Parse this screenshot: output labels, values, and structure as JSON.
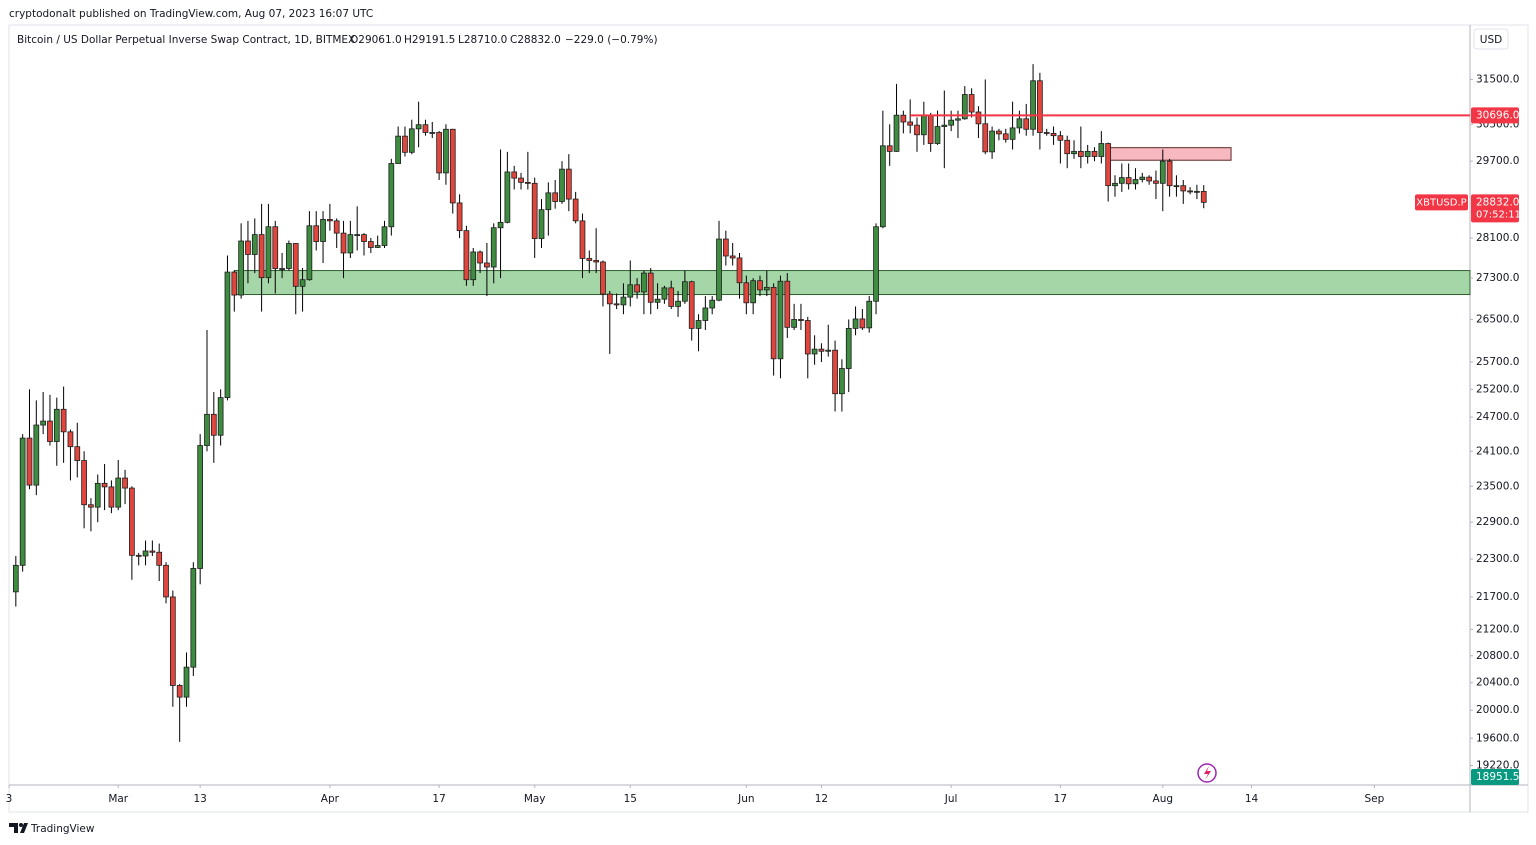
{
  "header": {
    "publisher": "cryptodonalt published on TradingView.com, Aug 07, 2023 16:07 UTC"
  },
  "footer": {
    "brand": "TradingView"
  },
  "chart_data": {
    "type": "candlestick",
    "title": "Bitcoin / US Dollar Perpetual Inverse Swap Contract, 1D, BITMEX",
    "ohlc_labels": [
      "O29061.0",
      "H29191.5",
      "L28710.0",
      "C28832.0"
    ],
    "change_label": "−229.0 (−0.79%)",
    "currency": "USD",
    "x": [
      "2023-02-14",
      "2023-02-15",
      "2023-02-16",
      "2023-02-17",
      "2023-02-18",
      "2023-02-19",
      "2023-02-20",
      "2023-02-21",
      "2023-02-22",
      "2023-02-23",
      "2023-02-24",
      "2023-02-25",
      "2023-02-26",
      "2023-02-27",
      "2023-02-28",
      "2023-03-01",
      "2023-03-02",
      "2023-03-03",
      "2023-03-04",
      "2023-03-05",
      "2023-03-06",
      "2023-03-07",
      "2023-03-08",
      "2023-03-09",
      "2023-03-10",
      "2023-03-11",
      "2023-03-12",
      "2023-03-13",
      "2023-03-14",
      "2023-03-15",
      "2023-03-16",
      "2023-03-17",
      "2023-03-18",
      "2023-03-19",
      "2023-03-20",
      "2023-03-21",
      "2023-03-22",
      "2023-03-23",
      "2023-03-24",
      "2023-03-25",
      "2023-03-26",
      "2023-03-27",
      "2023-03-28",
      "2023-03-29",
      "2023-03-30",
      "2023-03-31",
      "2023-04-01",
      "2023-04-02",
      "2023-04-03",
      "2023-04-04",
      "2023-04-05",
      "2023-04-06",
      "2023-04-07",
      "2023-04-08",
      "2023-04-09",
      "2023-04-10",
      "2023-04-11",
      "2023-04-12",
      "2023-04-13",
      "2023-04-14",
      "2023-04-15",
      "2023-04-16",
      "2023-04-17",
      "2023-04-18",
      "2023-04-19",
      "2023-04-20",
      "2023-04-21",
      "2023-04-22",
      "2023-04-23",
      "2023-04-24",
      "2023-04-25",
      "2023-04-26",
      "2023-04-27",
      "2023-04-28",
      "2023-04-29",
      "2023-04-30",
      "2023-05-01",
      "2023-05-02",
      "2023-05-03",
      "2023-05-04",
      "2023-05-05",
      "2023-05-06",
      "2023-05-07",
      "2023-05-08",
      "2023-05-09",
      "2023-05-10",
      "2023-05-11",
      "2023-05-12",
      "2023-05-13",
      "2023-05-14",
      "2023-05-15",
      "2023-05-16",
      "2023-05-17",
      "2023-05-18",
      "2023-05-19",
      "2023-05-20",
      "2023-05-21",
      "2023-05-22",
      "2023-05-23",
      "2023-05-24",
      "2023-05-25",
      "2023-05-26",
      "2023-05-27",
      "2023-05-28",
      "2023-05-29",
      "2023-05-30",
      "2023-05-31",
      "2023-06-01",
      "2023-06-02",
      "2023-06-03",
      "2023-06-04",
      "2023-06-05",
      "2023-06-06",
      "2023-06-07",
      "2023-06-08",
      "2023-06-09",
      "2023-06-10",
      "2023-06-11",
      "2023-06-12",
      "2023-06-13",
      "2023-06-14",
      "2023-06-15",
      "2023-06-16",
      "2023-06-17",
      "2023-06-18",
      "2023-06-19",
      "2023-06-20",
      "2023-06-21",
      "2023-06-22",
      "2023-06-23",
      "2023-06-24",
      "2023-06-25",
      "2023-06-26",
      "2023-06-27",
      "2023-06-28",
      "2023-06-29",
      "2023-06-30",
      "2023-07-01",
      "2023-07-02",
      "2023-07-03",
      "2023-07-04",
      "2023-07-05",
      "2023-07-06",
      "2023-07-07",
      "2023-07-08",
      "2023-07-09",
      "2023-07-10",
      "2023-07-11",
      "2023-07-12",
      "2023-07-13",
      "2023-07-14",
      "2023-07-15",
      "2023-07-16",
      "2023-07-17",
      "2023-07-18",
      "2023-07-19",
      "2023-07-20",
      "2023-07-21",
      "2023-07-22",
      "2023-07-23",
      "2023-07-24",
      "2023-07-25",
      "2023-07-26",
      "2023-07-27",
      "2023-07-28",
      "2023-07-29",
      "2023-07-30",
      "2023-07-31",
      "2023-08-01",
      "2023-08-02",
      "2023-08-03",
      "2023-08-04",
      "2023-08-05",
      "2023-08-06",
      "2023-08-07"
    ],
    "open": [
      21780,
      22200,
      24330,
      23520,
      24560,
      24630,
      24270,
      24840,
      24440,
      24180,
      23940,
      23190,
      23150,
      23550,
      23490,
      23150,
      23640,
      23470,
      22360,
      22350,
      22430,
      22410,
      22200,
      21700,
      20360,
      20190,
      20630,
      22150,
      24200,
      24750,
      24380,
      25050,
      27420,
      26970,
      28040,
      27770,
      28170,
      27310,
      28330,
      27490,
      27490,
      27990,
      27140,
      27270,
      28350,
      28030,
      28480,
      28450,
      28200,
      27800,
      28170,
      28170,
      28030,
      27910,
      27950,
      28330,
      29650,
      30240,
      29890,
      30400,
      30490,
      30320,
      30320,
      29450,
      30390,
      28820,
      28250,
      27270,
      27820,
      27600,
      27520,
      28310,
      28420,
      29470,
      29340,
      29250,
      29230,
      28090,
      28680,
      29030,
      28850,
      29530,
      28900,
      28450,
      27690,
      27650,
      27620,
      26990,
      26800,
      26780,
      26930,
      27170,
      27030,
      27400,
      26830,
      26890,
      27110,
      26750,
      26850,
      27230,
      26330,
      26480,
      26720,
      26870,
      28080,
      27740,
      27700,
      27210,
      26820,
      27250,
      27070,
      27120,
      25760,
      27240,
      26350,
      26500,
      26480,
      25850,
      25940,
      25900,
      25920,
      25120,
      25580,
      26330,
      26510,
      26340,
      26850,
      28330,
      30030,
      29910,
      30700,
      30550,
      30480,
      30270,
      30690,
      30080,
      30450,
      30480,
      30590,
      30620,
      31160,
      30770,
      30510,
      29900,
      30350,
      30290,
      30170,
      30420,
      30620,
      30390,
      31470,
      30320,
      30300,
      30250,
      30150,
      29860,
      29910,
      29800,
      29910,
      29800,
      30080,
      29180,
      29230,
      29350,
      29220,
      29310,
      29360,
      29280,
      29230,
      29700,
      29180,
      29180,
      29070,
      29050,
      29061
    ],
    "high": [
      22350,
      24400,
      25200,
      25000,
      25150,
      25100,
      25050,
      25250,
      24480,
      24600,
      24100,
      23300,
      23700,
      23880,
      23600,
      23950,
      23780,
      23500,
      22400,
      22600,
      22600,
      22550,
      22250,
      21800,
      20380,
      20850,
      22250,
      24400,
      26300,
      25150,
      25200,
      27750,
      27450,
      28400,
      28450,
      28500,
      28800,
      28800,
      28450,
      27800,
      28050,
      28000,
      27500,
      28650,
      28650,
      28650,
      28800,
      28500,
      28450,
      28450,
      28750,
      28200,
      28100,
      28150,
      28450,
      29750,
      30450,
      30450,
      30600,
      31000,
      30600,
      30550,
      30350,
      30500,
      30400,
      29000,
      28350,
      27900,
      27850,
      28000,
      28400,
      29950,
      29900,
      29600,
      29450,
      29900,
      29350,
      28900,
      29250,
      29300,
      29700,
      29850,
      29050,
      28600,
      27850,
      28300,
      27650,
      27050,
      27000,
      27200,
      27650,
      27300,
      27450,
      27500,
      27200,
      27150,
      27250,
      27050,
      27450,
      27250,
      26600,
      26950,
      26950,
      28450,
      28250,
      28000,
      27800,
      27350,
      27300,
      27350,
      27450,
      27200,
      27350,
      27400,
      26800,
      26800,
      26550,
      26200,
      26050,
      26400,
      26100,
      25750,
      26500,
      26750,
      26700,
      26950,
      28400,
      30800,
      30500,
      31400,
      30800,
      31050,
      30650,
      31000,
      30750,
      30800,
      31250,
      30800,
      30800,
      31350,
      31300,
      30900,
      31500,
      30450,
      30400,
      30400,
      31000,
      30800,
      30950,
      31850,
      31650,
      30400,
      30450,
      30350,
      30250,
      30150,
      30450,
      30050,
      30000,
      30350,
      30100,
      29400,
      29650,
      29650,
      29550,
      29450,
      29400,
      29500,
      29950,
      29750,
      29400,
      29300,
      29150,
      29200,
      29191.5
    ],
    "low": [
      21550,
      22100,
      23450,
      23350,
      24400,
      24200,
      23850,
      23900,
      23600,
      23650,
      22800,
      22750,
      22900,
      23100,
      23050,
      23100,
      23200,
      21970,
      22200,
      22200,
      22350,
      21950,
      21600,
      20050,
      19550,
      20050,
      20500,
      21900,
      24100,
      23900,
      24200,
      25000,
      26650,
      26900,
      27200,
      27400,
      26650,
      27200,
      27000,
      27300,
      27450,
      26600,
      26650,
      27250,
      27850,
      27600,
      28250,
      27900,
      27300,
      27700,
      27850,
      27750,
      27800,
      27900,
      27900,
      28150,
      29650,
      29800,
      29850,
      30000,
      30250,
      30200,
      29300,
      29200,
      28600,
      28100,
      27150,
      27150,
      27400,
      26950,
      27200,
      27300,
      28400,
      29100,
      29100,
      29100,
      27700,
      27900,
      28150,
      28700,
      28800,
      28650,
      28400,
      27300,
      27400,
      27400,
      26750,
      25850,
      26700,
      26600,
      26750,
      26900,
      26600,
      26600,
      26700,
      26800,
      26700,
      26550,
      26800,
      26100,
      25900,
      26300,
      26600,
      26850,
      27550,
      27550,
      26900,
      26600,
      26600,
      26950,
      26950,
      25450,
      25400,
      26150,
      26300,
      26300,
      25400,
      25650,
      25700,
      25800,
      24800,
      24800,
      25150,
      26200,
      26300,
      26250,
      26600,
      28300,
      29600,
      29900,
      30300,
      30300,
      29900,
      30050,
      29900,
      30050,
      29550,
      30350,
      30200,
      30600,
      30650,
      30200,
      29850,
      29750,
      30150,
      30100,
      29950,
      30300,
      30250,
      30250,
      29950,
      30250,
      30050,
      29650,
      29550,
      29750,
      29550,
      29650,
      29700,
      29650,
      28850,
      28950,
      29050,
      29100,
      29100,
      29250,
      29200,
      28900,
      28650,
      28950,
      28950,
      28800,
      29000,
      28900,
      28710
    ],
    "close": [
      22200,
      24330,
      23520,
      24560,
      24630,
      24270,
      24840,
      24440,
      24180,
      23940,
      23190,
      23150,
      23550,
      23490,
      23150,
      23640,
      23470,
      22360,
      22350,
      22430,
      22410,
      22200,
      21700,
      20360,
      20190,
      20630,
      22150,
      24200,
      24750,
      24380,
      25050,
      27420,
      26970,
      28040,
      27770,
      28170,
      27310,
      28330,
      27490,
      27490,
      27990,
      27140,
      27270,
      28350,
      28030,
      28480,
      28450,
      28200,
      27800,
      28170,
      28170,
      28030,
      27910,
      27950,
      28330,
      29650,
      30240,
      29890,
      30400,
      30490,
      30320,
      30320,
      29450,
      30390,
      28820,
      28250,
      27270,
      27820,
      27600,
      27520,
      28310,
      28420,
      29470,
      29340,
      29250,
      29230,
      28090,
      28680,
      29030,
      28850,
      29530,
      28900,
      28450,
      27690,
      27650,
      27620,
      26990,
      26800,
      26780,
      26930,
      27170,
      27030,
      27400,
      26830,
      26890,
      27110,
      26750,
      26850,
      27230,
      26330,
      26480,
      26720,
      26870,
      28080,
      27740,
      27700,
      27210,
      26820,
      27250,
      27070,
      27120,
      25760,
      27240,
      26350,
      26500,
      26480,
      25850,
      25940,
      25900,
      25920,
      25120,
      25580,
      26330,
      26510,
      26340,
      26850,
      28330,
      30030,
      29910,
      30700,
      30550,
      30480,
      30270,
      30690,
      30080,
      30450,
      30480,
      30590,
      30620,
      31160,
      30770,
      30510,
      29900,
      30350,
      30290,
      30170,
      30420,
      30620,
      30390,
      31470,
      30320,
      30300,
      30250,
      30150,
      29860,
      29910,
      29800,
      29910,
      29800,
      30080,
      29180,
      29230,
      29350,
      29220,
      29310,
      29360,
      29280,
      29230,
      29700,
      29180,
      29180,
      29070,
      29050,
      29061,
      28832
    ],
    "up_color": "#3d8c40",
    "down_color": "#e0463e",
    "wick_color": "#000000",
    "border_color": "#1e1e1e",
    "log_scale": true,
    "grid": false,
    "xlim": [
      "2023-02-13",
      "2023-09-15"
    ],
    "xticks": [
      {
        "value": "2023-02-13",
        "label": "3"
      },
      {
        "value": "2023-03-01",
        "label": "Mar"
      },
      {
        "value": "2023-03-13",
        "label": "13"
      },
      {
        "value": "2023-04-01",
        "label": "Apr"
      },
      {
        "value": "2023-04-17",
        "label": "17"
      },
      {
        "value": "2023-05-01",
        "label": "May"
      },
      {
        "value": "2023-05-15",
        "label": "15"
      },
      {
        "value": "2023-06-01",
        "label": "Jun"
      },
      {
        "value": "2023-06-12",
        "label": "12"
      },
      {
        "value": "2023-07-01",
        "label": "Jul"
      },
      {
        "value": "2023-07-17",
        "label": "17"
      },
      {
        "value": "2023-08-01",
        "label": "Aug"
      },
      {
        "value": "2023-08-14",
        "label": "14"
      },
      {
        "value": "2023-09-01",
        "label": "Sep"
      }
    ],
    "ylim": [
      18951.5,
      32760
    ],
    "yticks": [
      {
        "value": 31500,
        "label": "31500.0"
      },
      {
        "value": 30500,
        "label": "30500.0"
      },
      {
        "value": 29700,
        "label": "29700.0"
      },
      {
        "value": 28100,
        "label": "28100.0"
      },
      {
        "value": 27300,
        "label": "27300.0"
      },
      {
        "value": 26500,
        "label": "26500.0"
      },
      {
        "value": 25700,
        "label": "25700.0"
      },
      {
        "value": 25200,
        "label": "25200.0"
      },
      {
        "value": 24700,
        "label": "24700.0"
      },
      {
        "value": 24100,
        "label": "24100.0"
      },
      {
        "value": 23500,
        "label": "23500.0"
      },
      {
        "value": 22900,
        "label": "22900.0"
      },
      {
        "value": 22300,
        "label": "22300.0"
      },
      {
        "value": 21700,
        "label": "21700.0"
      },
      {
        "value": 21200,
        "label": "21200.0"
      },
      {
        "value": 20800,
        "label": "20800.0"
      },
      {
        "value": 20400,
        "label": "20400.0"
      },
      {
        "value": 20000,
        "label": "20000.0"
      },
      {
        "value": 19600,
        "label": "19600.0"
      },
      {
        "value": 19220,
        "label": "19220.0"
      }
    ],
    "zones": [
      {
        "low": 26980,
        "high": 27450,
        "start": "2023-03-18",
        "color": "#a5d6a7",
        "border": "#2e5e30"
      },
      {
        "low": 29720,
        "high": 29990,
        "start": "2023-07-24",
        "end": "2023-08-11",
        "color": "#f7b8c0",
        "border": "#5a2a2a"
      }
    ],
    "price_line": {
      "value": 30696,
      "label": "30696.0",
      "start": "2023-06-25",
      "color": "#f23645"
    },
    "last_price": {
      "symbol": "XBTUSD.P",
      "label": "28832.0",
      "countdown": "07:52:11",
      "color": "#f23645"
    },
    "cursor_price": {
      "value": 18951.5,
      "label": "18951.5",
      "color": "#089981"
    }
  }
}
